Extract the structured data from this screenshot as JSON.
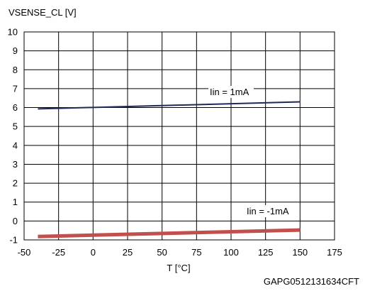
{
  "chart_data": {
    "type": "line",
    "title": "",
    "ylabel": "VSENSE_CL [V]",
    "xlabel": "T [°C]",
    "xlim": [
      -50,
      175
    ],
    "ylim": [
      -1,
      10
    ],
    "xticks": [
      -50,
      -25,
      0,
      25,
      50,
      75,
      100,
      125,
      150,
      175
    ],
    "yticks": [
      -1,
      0,
      1,
      2,
      3,
      4,
      5,
      6,
      7,
      8,
      9,
      10
    ],
    "grid": true,
    "legend": "inline labels",
    "series": [
      {
        "name": "Iin = 1mA",
        "x": [
          -40,
          150
        ],
        "y": [
          5.93,
          6.3
        ],
        "color": "#1f2a5a"
      },
      {
        "name": "Iin = -1mA",
        "x": [
          -40,
          150
        ],
        "y": [
          -0.82,
          -0.48
        ],
        "color": "#c0504d"
      }
    ],
    "footnote": "GAPG0512131634CFT"
  }
}
